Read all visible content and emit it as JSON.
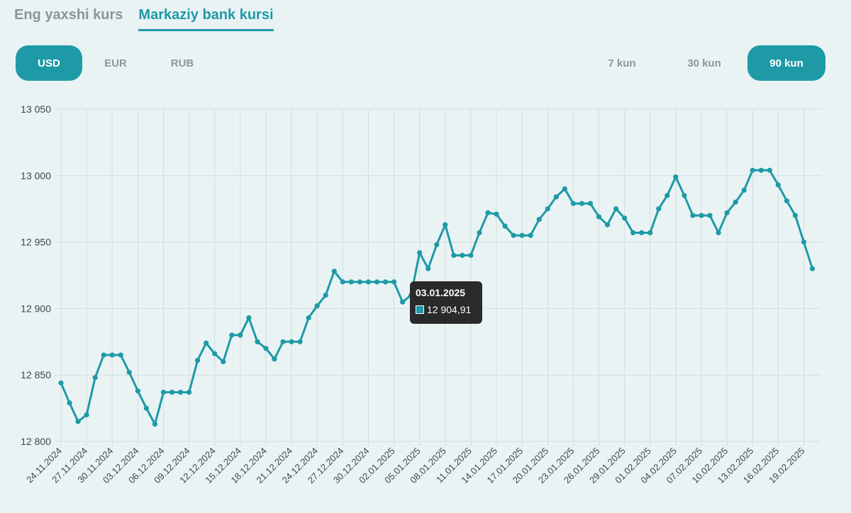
{
  "tabs": [
    {
      "label": "Eng yaxshi kurs",
      "active": false
    },
    {
      "label": "Markaziy bank kursi",
      "active": true
    }
  ],
  "currencies": [
    {
      "label": "USD",
      "active": true
    },
    {
      "label": "EUR",
      "active": false
    },
    {
      "label": "RUB",
      "active": false
    }
  ],
  "periods": [
    {
      "label": "7 kun",
      "active": false
    },
    {
      "label": "30 kun",
      "active": false
    },
    {
      "label": "90 kun",
      "active": true
    }
  ],
  "colors": {
    "accent": "#1d9aa6",
    "grid": "#d3dcdf",
    "tooltip_bg": "#2a2a2a"
  },
  "tooltip": {
    "date": "03.01.2025",
    "value": "12 904,91"
  },
  "chart_data": {
    "type": "line",
    "ylim": [
      12800,
      13050
    ],
    "yticks": [
      {
        "value": 12800,
        "label": "12 800"
      },
      {
        "value": 12850,
        "label": "12 850"
      },
      {
        "value": 12900,
        "label": "12 900"
      },
      {
        "value": 12950,
        "label": "12 950"
      },
      {
        "value": 13000,
        "label": "13 000"
      },
      {
        "value": 13050,
        "label": "13 050"
      }
    ],
    "x_labels": [
      "24.11.2024",
      "27.11.2024",
      "30.11.2024",
      "03.12.2024",
      "06.12.2024",
      "09.12.2024",
      "12.12.2024",
      "15.12.2024",
      "18.12.2024",
      "21.12.2024",
      "24.12.2024",
      "27.12.2024",
      "30.12.2024",
      "02.01.2025",
      "05.01.2025",
      "08.01.2025",
      "11.01.2025",
      "14.01.2025",
      "17.01.2025",
      "20.01.2025",
      "23.01.2025",
      "26.01.2025",
      "29.01.2025",
      "01.02.2025",
      "04.02.2025",
      "07.02.2025",
      "10.02.2025",
      "13.02.2025",
      "16.02.2025",
      "19.02.2025"
    ],
    "grid": true,
    "series": [
      {
        "values": [
          12844,
          12829,
          12815,
          12820,
          12848,
          12865,
          12865,
          12865,
          12852,
          12838,
          12825,
          12813,
          12837,
          12837,
          12837,
          12837,
          12861,
          12874,
          12866,
          12860,
          12880,
          12880,
          12893,
          12875,
          12870,
          12862,
          12875,
          12875,
          12875,
          12893,
          12902,
          12910,
          12928,
          12920,
          12920,
          12920,
          12920,
          12920,
          12920,
          12920,
          12904.91,
          12910,
          12942,
          12930,
          12948,
          12963,
          12940,
          12940,
          12940,
          12957,
          12972,
          12971,
          12962,
          12955,
          12955,
          12955,
          12967,
          12975,
          12984,
          12990,
          12979,
          12979,
          12979,
          12969,
          12963,
          12975,
          12968,
          12957,
          12957,
          12957,
          12975,
          12985,
          12999,
          12985,
          12970,
          12970,
          12970,
          12957,
          12972,
          12980,
          12989,
          13004,
          13004,
          13004,
          12993,
          12981,
          12970,
          12950,
          12930
        ]
      }
    ]
  }
}
